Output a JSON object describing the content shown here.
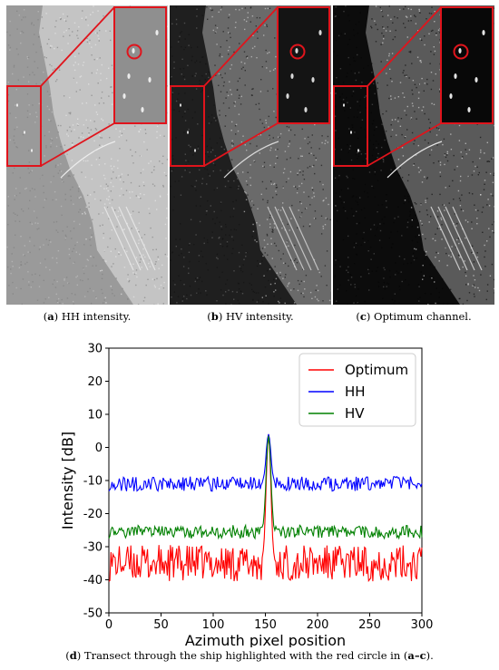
{
  "figure": {
    "panels": [
      {
        "label": "a",
        "caption": "HH intensity.",
        "tone": "hh"
      },
      {
        "label": "b",
        "caption": "HV intensity.",
        "tone": "hv"
      },
      {
        "label": "c",
        "caption": "Optimum channel.",
        "tone": "opt"
      }
    ],
    "bottom_caption": {
      "label": "d",
      "text": "Transect through the ship highlighted with the red circle in",
      "ref": "a–c",
      "end": "."
    }
  },
  "colors": {
    "highlight": "#e0141c",
    "optimum": "#ff0000",
    "hh": "#0000ff",
    "hv": "#008000"
  },
  "chart_data": {
    "type": "line",
    "xlabel": "Azimuth pixel position",
    "ylabel": "Intensity [dB]",
    "xlim": [
      0,
      300
    ],
    "ylim": [
      -50,
      30
    ],
    "xticks": [
      0,
      50,
      100,
      150,
      200,
      250,
      300
    ],
    "yticks": [
      -50,
      -40,
      -30,
      -20,
      -10,
      0,
      10,
      20,
      30
    ],
    "legend_position": "top-right",
    "peak_x": 153,
    "series": [
      {
        "name": "Optimum",
        "color": "#ff0000",
        "baseline": -35,
        "noise": 5.5,
        "peak": 4
      },
      {
        "name": "HH",
        "color": "#0000ff",
        "baseline": -11,
        "noise": 2.2,
        "peak": 4
      },
      {
        "name": "HV",
        "color": "#008000",
        "baseline": -25.5,
        "noise": 2.0,
        "peak": 3.5
      }
    ]
  }
}
